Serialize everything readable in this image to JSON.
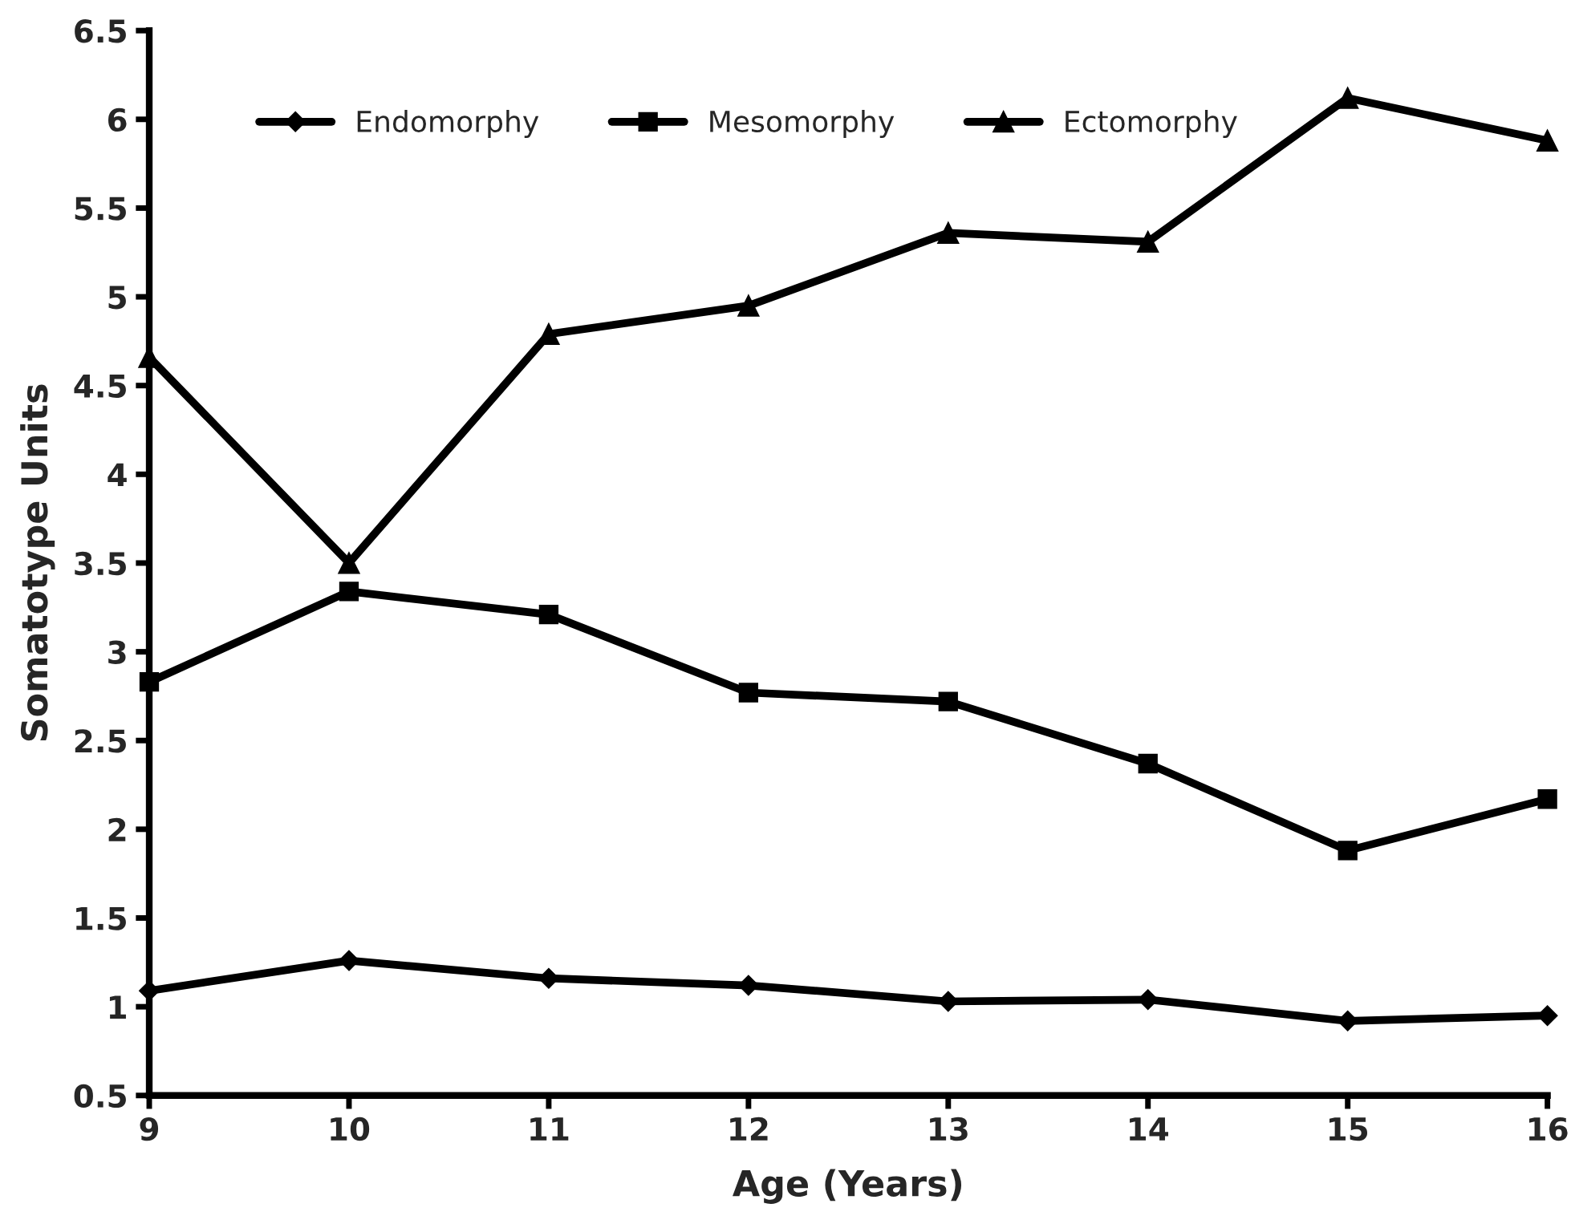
{
  "chart_data": {
    "type": "line",
    "xlabel": "Age (Years)",
    "ylabel": "Somatotype Units",
    "x": [
      9,
      10,
      11,
      12,
      13,
      14,
      15,
      16
    ],
    "series": [
      {
        "name": "Endomorphy",
        "color": "#000000",
        "marker": "diamond",
        "values": [
          1.09,
          1.26,
          1.16,
          1.12,
          1.03,
          1.04,
          0.92,
          0.95
        ]
      },
      {
        "name": "Mesomorphy",
        "color": "#000000",
        "marker": "square",
        "values": [
          2.83,
          3.34,
          3.21,
          2.77,
          2.72,
          2.37,
          1.88,
          2.17
        ]
      },
      {
        "name": "Ectomorphy",
        "color": "#000000",
        "marker": "triangle",
        "values": [
          4.66,
          3.5,
          4.79,
          4.95,
          5.36,
          5.31,
          6.12,
          5.88
        ]
      }
    ],
    "xlim": [
      9,
      16
    ],
    "xticks": [
      9,
      10,
      11,
      12,
      13,
      14,
      15,
      16
    ],
    "ylim": [
      0.5,
      6.5
    ],
    "yticks": [
      0.5,
      1,
      1.5,
      2,
      2.5,
      3,
      3.5,
      4,
      4.5,
      5,
      5.5,
      6,
      6.5
    ],
    "grid": false,
    "legend": "top left",
    "line_style": "solid"
  }
}
